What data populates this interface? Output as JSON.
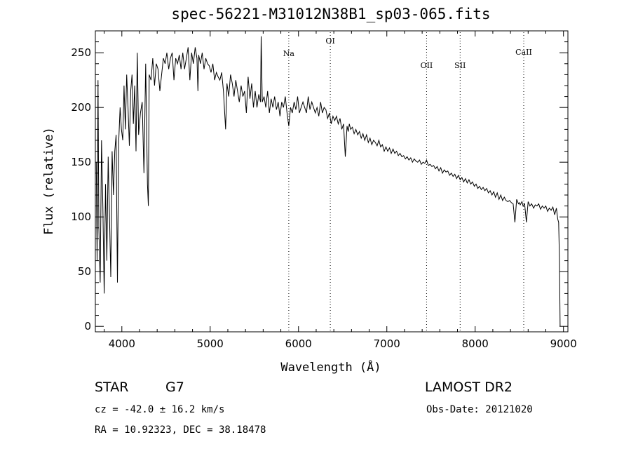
{
  "chart_data": {
    "type": "line",
    "title": "spec-56221-M31012N38B1_sp03-065.fits",
    "xlabel": "Wavelength (Å)",
    "ylabel": "Flux (relative)",
    "xlim": [
      3700,
      9050
    ],
    "ylim": [
      -5,
      270
    ],
    "xticks": [
      4000,
      5000,
      6000,
      7000,
      8000,
      9000
    ],
    "yticks": [
      0,
      50,
      100,
      150,
      200,
      250
    ],
    "grid": false,
    "lines": [
      {
        "label": "Na",
        "x": 5890
      },
      {
        "label": "OI",
        "x": 6360
      },
      {
        "label": "OII",
        "x": 7450
      },
      {
        "label": "SII",
        "x": 7830
      },
      {
        "label": "CaII",
        "x": 8550
      }
    ],
    "series": [
      {
        "x": [
          3710,
          3720,
          3730,
          3740,
          3755,
          3770,
          3785,
          3800,
          3815,
          3830,
          3845,
          3860,
          3875,
          3890,
          3905,
          3920,
          3935,
          3950,
          3965,
          3980,
          3995,
          4010,
          4025,
          4040,
          4055,
          4070,
          4085,
          4100,
          4115,
          4130,
          4145,
          4160,
          4175,
          4190,
          4210,
          4230,
          4250,
          4270,
          4290,
          4300,
          4310,
          4330,
          4350,
          4370,
          4390,
          4410,
          4430,
          4450,
          4470,
          4490,
          4510,
          4530,
          4550,
          4570,
          4590,
          4610,
          4630,
          4650,
          4670,
          4690,
          4710,
          4730,
          4750,
          4770,
          4790,
          4810,
          4830,
          4850,
          4861,
          4870,
          4890,
          4910,
          4930,
          4950,
          4970,
          4990,
          5010,
          5030,
          5050,
          5070,
          5090,
          5110,
          5130,
          5150,
          5175,
          5190,
          5210,
          5230,
          5250,
          5270,
          5290,
          5310,
          5330,
          5350,
          5370,
          5390,
          5410,
          5430,
          5450,
          5470,
          5490,
          5510,
          5530,
          5550,
          5570,
          5577,
          5590,
          5610,
          5630,
          5650,
          5670,
          5690,
          5710,
          5730,
          5750,
          5770,
          5790,
          5810,
          5830,
          5850,
          5870,
          5890,
          5910,
          5930,
          5950,
          5970,
          5990,
          6010,
          6030,
          6050,
          6070,
          6090,
          6110,
          6130,
          6150,
          6170,
          6190,
          6210,
          6230,
          6250,
          6270,
          6290,
          6310,
          6330,
          6350,
          6370,
          6390,
          6410,
          6430,
          6450,
          6470,
          6490,
          6510,
          6530,
          6550,
          6563,
          6575,
          6590,
          6610,
          6630,
          6650,
          6670,
          6690,
          6710,
          6730,
          6750,
          6770,
          6790,
          6810,
          6830,
          6850,
          6870,
          6890,
          6910,
          6930,
          6950,
          6970,
          6990,
          7010,
          7030,
          7050,
          7070,
          7090,
          7110,
          7130,
          7150,
          7170,
          7190,
          7210,
          7230,
          7250,
          7270,
          7290,
          7310,
          7330,
          7350,
          7370,
          7390,
          7410,
          7430,
          7450,
          7470,
          7490,
          7510,
          7530,
          7550,
          7570,
          7590,
          7610,
          7630,
          7650,
          7670,
          7690,
          7710,
          7730,
          7750,
          7770,
          7790,
          7810,
          7830,
          7850,
          7870,
          7890,
          7910,
          7930,
          7950,
          7970,
          7990,
          8010,
          8030,
          8050,
          8070,
          8090,
          8110,
          8130,
          8150,
          8170,
          8190,
          8210,
          8230,
          8250,
          8270,
          8290,
          8310,
          8330,
          8350,
          8370,
          8390,
          8410,
          8430,
          8450,
          8470,
          8490,
          8500,
          8510,
          8530,
          8542,
          8560,
          8580,
          8600,
          8620,
          8640,
          8662,
          8680,
          8700,
          8720,
          8740,
          8760,
          8780,
          8800,
          8820,
          8840,
          8860,
          8880,
          8900,
          8920,
          8935,
          8945,
          8955,
          8962
        ],
        "y": [
          150,
          60,
          225,
          90,
          40,
          170,
          110,
          30,
          130,
          60,
          155,
          100,
          45,
          160,
          120,
          160,
          175,
          40,
          170,
          200,
          180,
          170,
          220,
          180,
          230,
          200,
          165,
          215,
          230,
          185,
          220,
          160,
          250,
          175,
          195,
          205,
          140,
          240,
          130,
          110,
          230,
          225,
          245,
          220,
          240,
          235,
          215,
          230,
          245,
          240,
          250,
          235,
          245,
          250,
          225,
          245,
          240,
          248,
          235,
          250,
          235,
          245,
          255,
          225,
          250,
          240,
          255,
          245,
          215,
          248,
          240,
          250,
          235,
          245,
          240,
          238,
          232,
          240,
          225,
          232,
          228,
          225,
          232,
          215,
          180,
          222,
          210,
          230,
          222,
          210,
          225,
          215,
          205,
          220,
          210,
          215,
          195,
          228,
          208,
          222,
          200,
          215,
          200,
          212,
          205,
          265,
          205,
          210,
          200,
          215,
          195,
          208,
          200,
          210,
          198,
          205,
          192,
          205,
          200,
          210,
          195,
          183,
          200,
          195,
          205,
          198,
          210,
          195,
          200,
          205,
          200,
          195,
          210,
          198,
          205,
          200,
          195,
          200,
          192,
          205,
          195,
          200,
          198,
          190,
          195,
          185,
          192,
          188,
          192,
          185,
          190,
          180,
          185,
          155,
          183,
          178,
          185,
          180,
          182,
          176,
          180,
          175,
          178,
          172,
          176,
          170,
          175,
          168,
          172,
          166,
          170,
          168,
          165,
          170,
          164,
          166,
          160,
          164,
          160,
          163,
          158,
          162,
          158,
          160,
          156,
          158,
          155,
          156,
          153,
          155,
          152,
          154,
          150,
          153,
          151,
          150,
          152,
          148,
          150,
          149,
          152,
          147,
          148,
          146,
          147,
          144,
          146,
          142,
          145,
          140,
          143,
          141,
          142,
          138,
          140,
          137,
          139,
          135,
          138,
          134,
          136,
          132,
          135,
          131,
          134,
          130,
          132,
          128,
          130,
          126,
          128,
          125,
          127,
          124,
          126,
          122,
          124,
          120,
          123,
          118,
          122,
          116,
          120,
          115,
          118,
          115,
          114,
          115,
          113,
          112,
          95,
          116,
          112,
          113,
          111,
          114,
          110,
          112,
          95,
          114,
          110,
          112,
          108,
          111,
          110,
          112,
          107,
          110,
          108,
          110,
          105,
          108,
          106,
          109,
          102,
          108,
          98,
          95,
          60,
          0
        ]
      }
    ]
  },
  "info": {
    "object_class": "STAR",
    "subclass": "G7",
    "survey": "LAMOST DR2",
    "redshift": "cz = -42.0 ± 16.2 km/s",
    "obs_date": "Obs-Date: 20121020",
    "coords": "RA =  10.92323, DEC =  38.18478"
  },
  "colors": {
    "line": "#000000",
    "background": "#ffffff"
  }
}
